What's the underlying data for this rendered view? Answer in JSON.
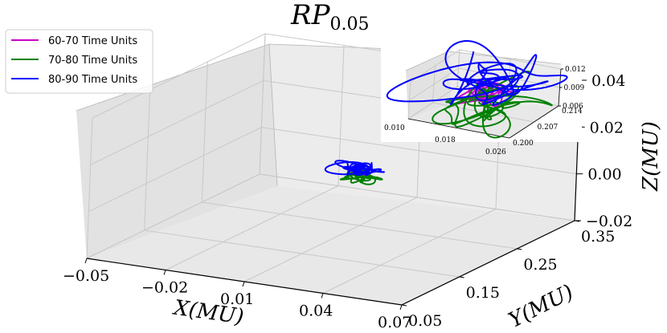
{
  "chart_data": [
    {
      "type": "line",
      "projection": "3d",
      "title": "RP",
      "title_subscript": "0.05",
      "xlabel": "X(MU)",
      "ylabel": "Y(MU)",
      "zlabel": "Z(MU)",
      "x_ticks": [
        "−0.05",
        "−0.02",
        "0.01",
        "0.04",
        "0.07"
      ],
      "y_ticks": [
        "0.05",
        "0.15",
        "0.25",
        "0.35"
      ],
      "z_ticks": [
        "−0.02",
        "0.00",
        "0.02",
        "0.04"
      ],
      "xlim": [
        -0.05,
        0.07
      ],
      "ylim": [
        0.05,
        0.35
      ],
      "zlim": [
        -0.02,
        0.04
      ],
      "grid": true,
      "legend_position": "top-left",
      "series": [
        {
          "name": "60-70 Time Units",
          "color": "#cc00cc",
          "center": [
            0.018,
            0.207,
            0.009
          ],
          "radius": [
            0.003,
            0.004,
            0.0012
          ],
          "turns": 7
        },
        {
          "name": "70-80 Time Units",
          "color": "#008000",
          "center": [
            0.019,
            0.206,
            0.0075
          ],
          "radius": [
            0.006,
            0.008,
            0.0025
          ],
          "turns": 6
        },
        {
          "name": "80-90 Time Units",
          "color": "#0000ff",
          "center": [
            0.018,
            0.209,
            0.0105
          ],
          "radius": [
            0.009,
            0.009,
            0.0028
          ],
          "turns": 6
        }
      ]
    },
    {
      "type": "line",
      "projection": "3d",
      "role": "inset",
      "x_ticks": [
        "0.010",
        "0.018",
        "0.026"
      ],
      "y_ticks": [
        "0.200",
        "0.207",
        "0.214"
      ],
      "z_ticks": [
        "0.006",
        "0.009",
        "0.012"
      ],
      "xlim": [
        0.01,
        0.026
      ],
      "ylim": [
        0.2,
        0.214
      ],
      "zlim": [
        0.006,
        0.012
      ],
      "grid": true
    }
  ]
}
